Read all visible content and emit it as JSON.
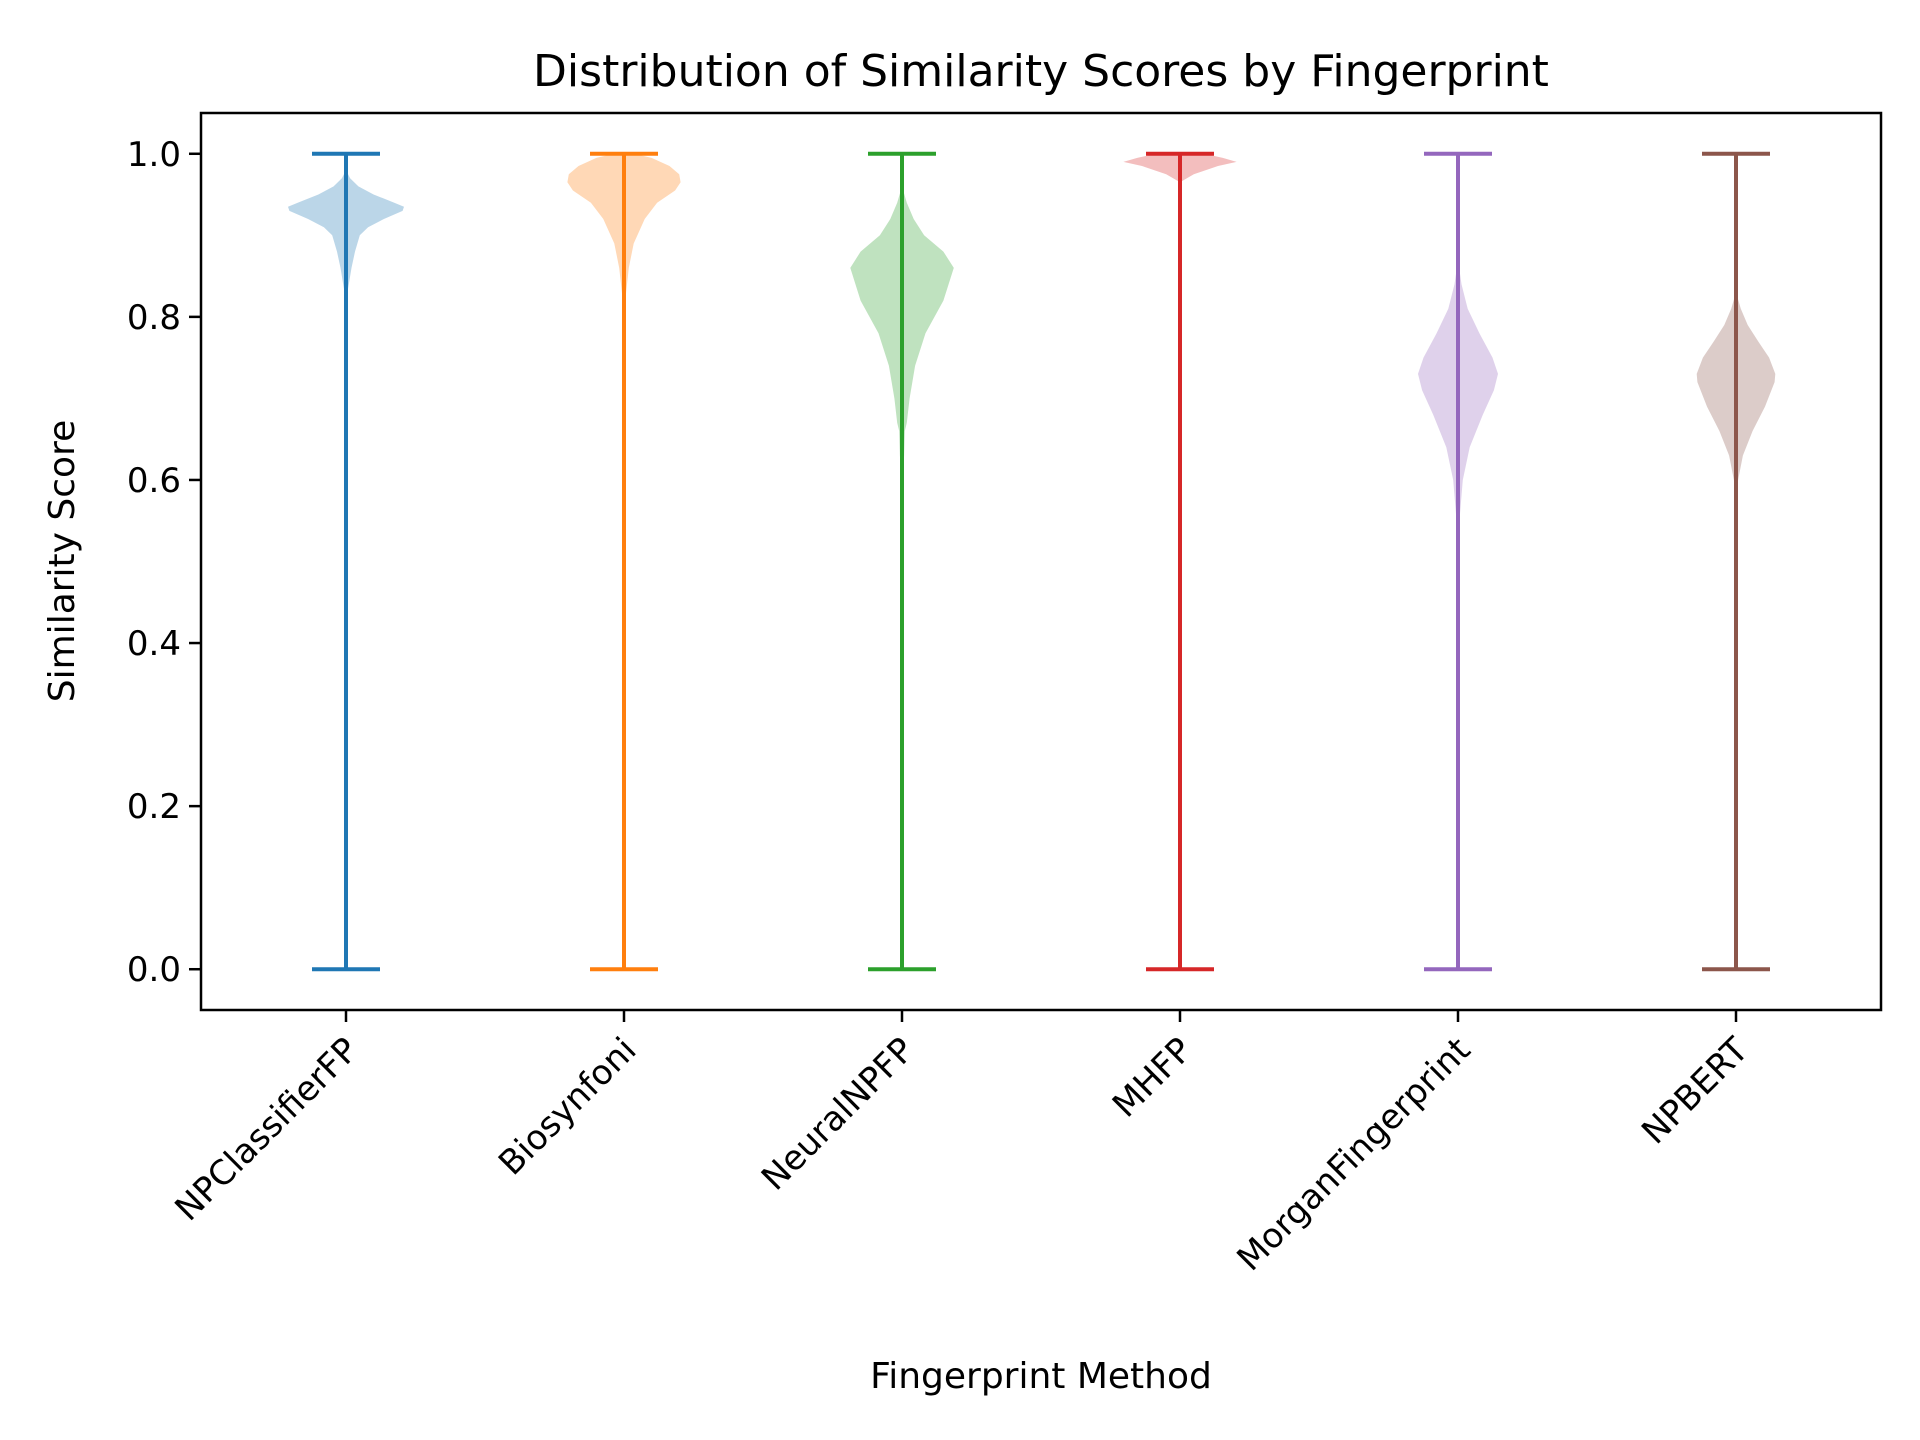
{
  "chart_data": {
    "type": "violin",
    "title": "Distribution of Similarity Scores by Fingerprint",
    "xlabel": "Fingerprint Method",
    "ylabel": "Similarity Score",
    "ylim": [
      -0.05,
      1.05
    ],
    "yticks": [
      "0.0",
      "0.2",
      "0.4",
      "0.6",
      "0.8",
      "1.0"
    ],
    "grid": false,
    "series": [
      {
        "name": "NPClassifierFP",
        "color": "#1f77b4",
        "min": 0.0,
        "max": 1.0,
        "density": [
          [
            0.82,
            0.0
          ],
          [
            0.84,
            0.04
          ],
          [
            0.86,
            0.08
          ],
          [
            0.88,
            0.13
          ],
          [
            0.9,
            0.2
          ],
          [
            0.91,
            0.32
          ],
          [
            0.92,
            0.55
          ],
          [
            0.93,
            0.82
          ],
          [
            0.935,
            0.84
          ],
          [
            0.94,
            0.7
          ],
          [
            0.95,
            0.4
          ],
          [
            0.96,
            0.18
          ],
          [
            0.97,
            0.06
          ],
          [
            0.98,
            0.0
          ]
        ]
      },
      {
        "name": "Biosynfoni",
        "color": "#ff7f0e",
        "min": 0.0,
        "max": 1.0,
        "density": [
          [
            0.8,
            0.0
          ],
          [
            0.83,
            0.03
          ],
          [
            0.86,
            0.07
          ],
          [
            0.89,
            0.14
          ],
          [
            0.92,
            0.3
          ],
          [
            0.94,
            0.48
          ],
          [
            0.955,
            0.74
          ],
          [
            0.965,
            0.82
          ],
          [
            0.975,
            0.8
          ],
          [
            0.985,
            0.66
          ],
          [
            0.995,
            0.4
          ],
          [
            1.0,
            0.15
          ]
        ]
      },
      {
        "name": "NeuralNPFP",
        "color": "#2ca02c",
        "min": 0.0,
        "max": 1.0,
        "density": [
          [
            0.59,
            0.0
          ],
          [
            0.63,
            0.03
          ],
          [
            0.66,
            0.04
          ],
          [
            0.67,
            0.07
          ],
          [
            0.7,
            0.11
          ],
          [
            0.74,
            0.19
          ],
          [
            0.78,
            0.34
          ],
          [
            0.82,
            0.6
          ],
          [
            0.86,
            0.75
          ],
          [
            0.88,
            0.6
          ],
          [
            0.9,
            0.32
          ],
          [
            0.92,
            0.17
          ],
          [
            0.94,
            0.07
          ],
          [
            0.96,
            0.0
          ]
        ]
      },
      {
        "name": "MHFP",
        "color": "#d62728",
        "min": 0.0,
        "max": 1.0,
        "density": [
          [
            0.965,
            0.0
          ],
          [
            0.975,
            0.2
          ],
          [
            0.985,
            0.55
          ],
          [
            0.99,
            0.82
          ],
          [
            0.995,
            0.62
          ],
          [
            1.0,
            0.35
          ]
        ]
      },
      {
        "name": "MorganFingerprint",
        "color": "#9467bd",
        "min": 0.0,
        "max": 1.0,
        "density": [
          [
            0.52,
            0.0
          ],
          [
            0.56,
            0.03
          ],
          [
            0.6,
            0.07
          ],
          [
            0.64,
            0.17
          ],
          [
            0.68,
            0.36
          ],
          [
            0.71,
            0.52
          ],
          [
            0.73,
            0.58
          ],
          [
            0.75,
            0.5
          ],
          [
            0.78,
            0.31
          ],
          [
            0.81,
            0.14
          ],
          [
            0.84,
            0.05
          ],
          [
            0.87,
            0.0
          ]
        ]
      },
      {
        "name": "NPBERT",
        "color": "#8c564b",
        "min": 0.0,
        "max": 1.0,
        "density": [
          [
            0.57,
            0.0
          ],
          [
            0.6,
            0.03
          ],
          [
            0.63,
            0.1
          ],
          [
            0.66,
            0.24
          ],
          [
            0.69,
            0.42
          ],
          [
            0.72,
            0.56
          ],
          [
            0.73,
            0.57
          ],
          [
            0.75,
            0.48
          ],
          [
            0.77,
            0.32
          ],
          [
            0.79,
            0.17
          ],
          [
            0.81,
            0.07
          ],
          [
            0.83,
            0.0
          ]
        ]
      }
    ]
  }
}
